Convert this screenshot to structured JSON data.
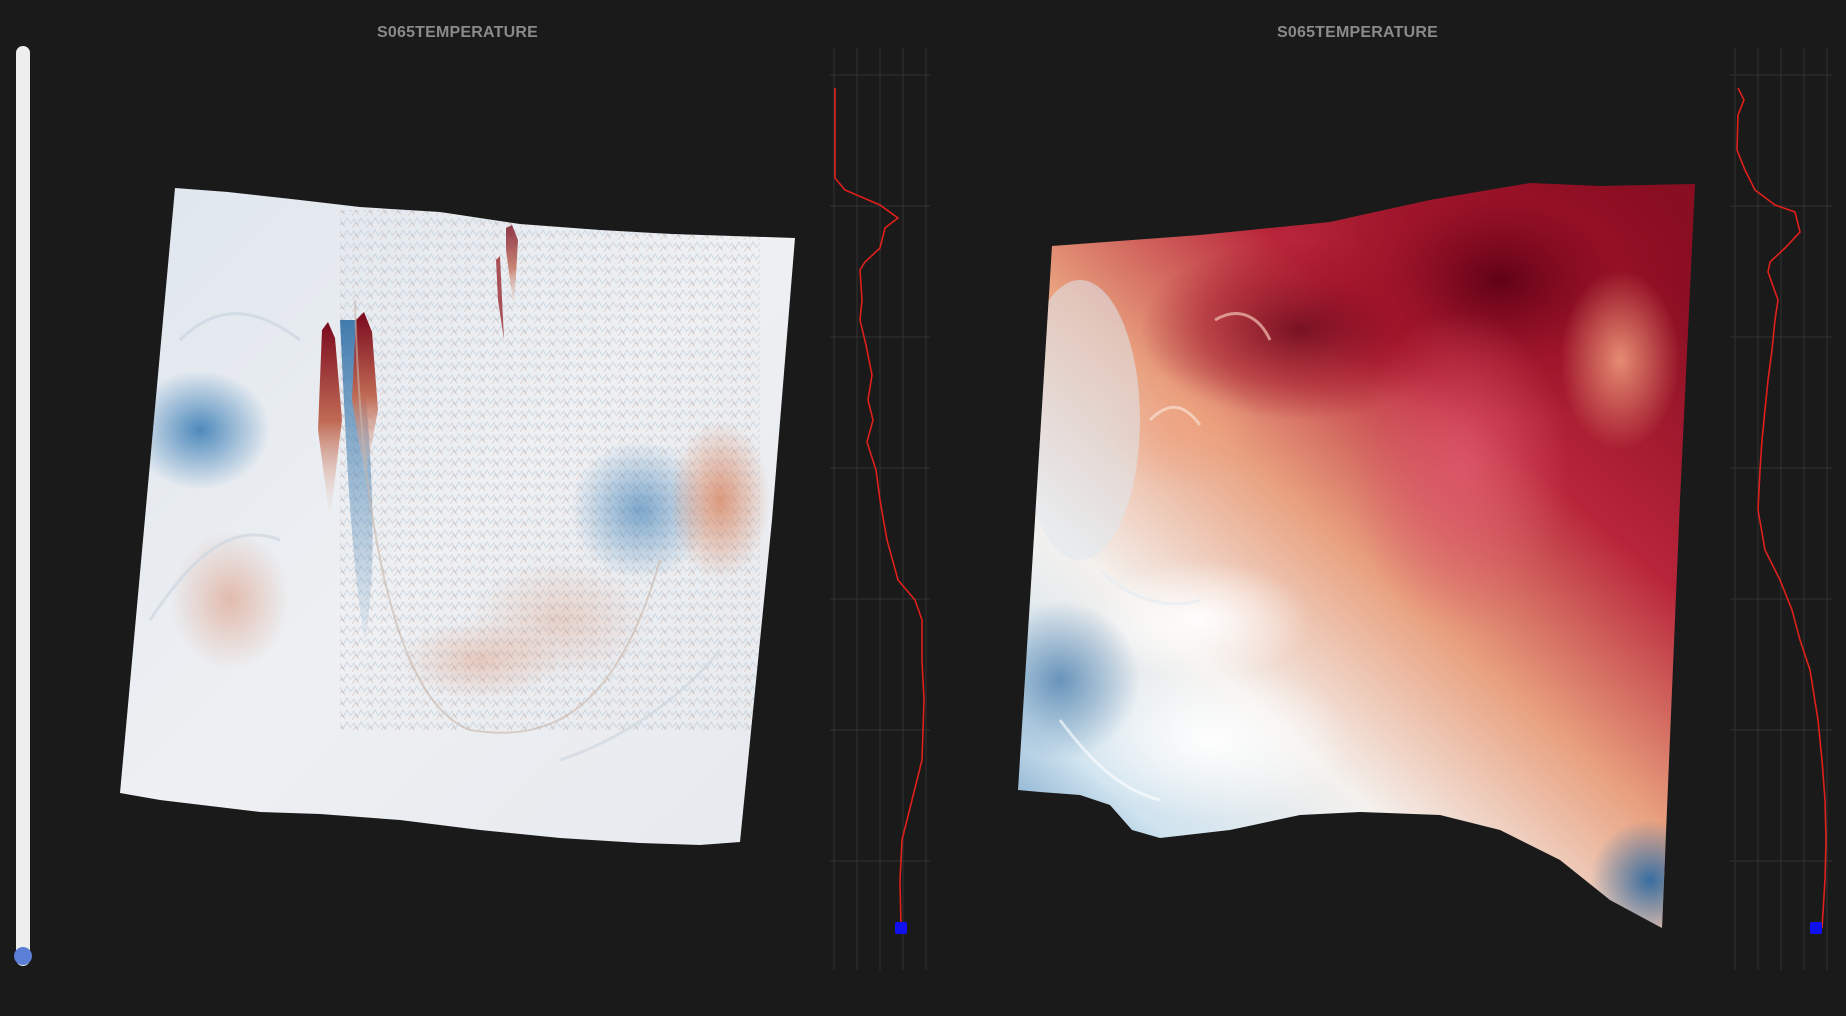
{
  "slider": {
    "value_fraction": 1.0,
    "accent": "#5b7fd6"
  },
  "panels": [
    {
      "title": "S065TEMPERATURE"
    },
    {
      "title": "S065TEMPERATURE"
    }
  ],
  "colors": {
    "background": "#1a1a1a",
    "cold": "#2b6fa6",
    "neutral": "#f2f3f5",
    "hot": "#7a0016",
    "profile_line": "#e0201a",
    "profile_marker": "#1010ee",
    "grid": "#3a3a3a"
  }
}
